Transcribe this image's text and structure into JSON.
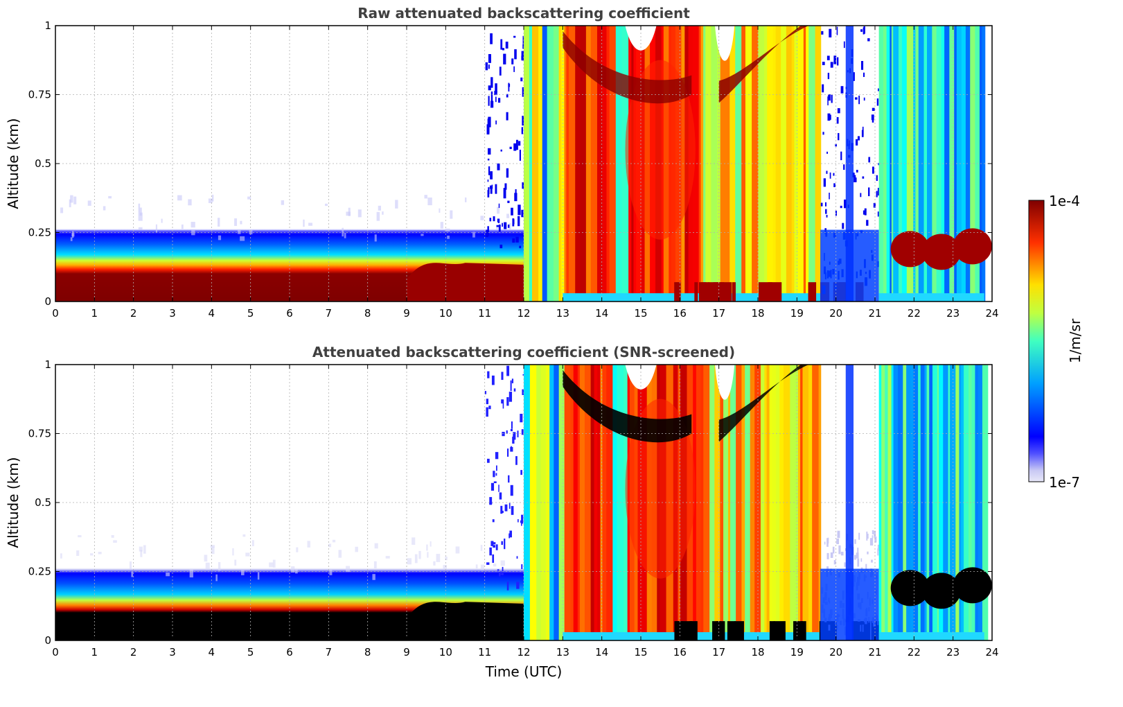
{
  "chart_data": [
    {
      "type": "heatmap",
      "title": "Raw attenuated backscattering coefficient",
      "xlabel": "",
      "ylabel": "Altitude (km)",
      "xlim": [
        0,
        24
      ],
      "ylim": [
        0,
        1
      ],
      "x_ticks": [
        "0",
        "1",
        "2",
        "3",
        "4",
        "5",
        "6",
        "7",
        "8",
        "9",
        "10",
        "11",
        "12",
        "13",
        "14",
        "15",
        "16",
        "17",
        "18",
        "19",
        "20",
        "21",
        "22",
        "23",
        "24"
      ],
      "y_ticks": [
        "0",
        "0.25",
        "0.5",
        "0.75",
        "1"
      ],
      "grid": true,
      "colormap": "jet",
      "screened": false,
      "features": {
        "surface_layer_top_km_0_to_9h": 0.22,
        "cloud_onset_hour": 12.0,
        "dense_cloud_hours": [
          13.0,
          19.6
        ],
        "clear_gap_hours": [
          19.6,
          21.1
        ],
        "late_aerosol_layer_km": [
          0.1,
          0.27
        ]
      }
    },
    {
      "type": "heatmap",
      "title": "Attenuated backscattering coefficient (SNR-screened)",
      "xlabel": "Time (UTC)",
      "ylabel": "Altitude (km)",
      "xlim": [
        0,
        24
      ],
      "ylim": [
        0,
        1
      ],
      "x_ticks": [
        "0",
        "1",
        "2",
        "3",
        "4",
        "5",
        "6",
        "7",
        "8",
        "9",
        "10",
        "11",
        "12",
        "13",
        "14",
        "15",
        "16",
        "17",
        "18",
        "19",
        "20",
        "21",
        "22",
        "23",
        "24"
      ],
      "y_ticks": [
        "0",
        "0.25",
        "0.5",
        "0.75",
        "1"
      ],
      "grid": true,
      "colormap": "jet",
      "screened": true,
      "saturated_color": "#000000"
    }
  ],
  "colorbar": {
    "max_label": "1e-4",
    "min_label": "1e-7",
    "unit_label": "1/m/sr",
    "scale": "log",
    "range": [
      1e-07,
      0.0001
    ]
  },
  "colors": {
    "title": "#404040",
    "grid": "#b0b0b0",
    "axis": "#000000"
  }
}
